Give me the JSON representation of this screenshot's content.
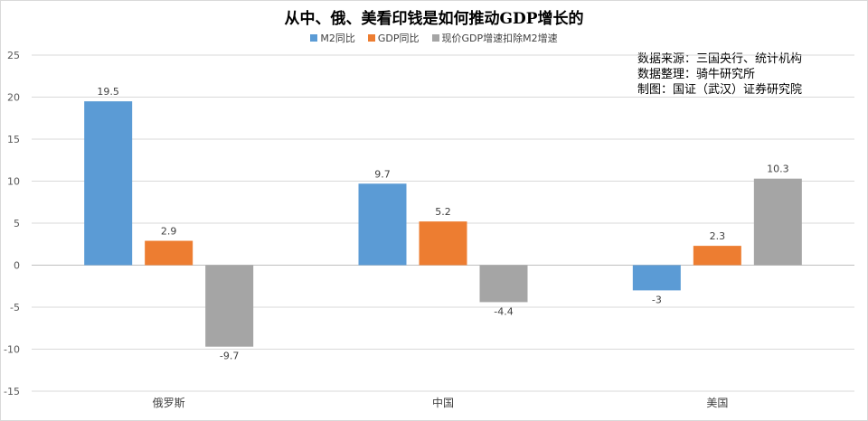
{
  "title": "从中、俄、美看印钱是如何推动GDP增长的",
  "chart_data": {
    "type": "bar",
    "categories": [
      "俄罗斯",
      "中国",
      "美国"
    ],
    "series": [
      {
        "name": "M2同比",
        "color": "#5b9bd5",
        "values": [
          19.5,
          9.7,
          -3
        ]
      },
      {
        "name": "GDP同比",
        "color": "#ed7d31",
        "values": [
          2.9,
          5.2,
          2.3
        ]
      },
      {
        "name": "现价GDP增速扣除M2增速",
        "color": "#a5a5a5",
        "values": [
          -9.7,
          -4.4,
          10.3
        ]
      }
    ],
    "data_labels": [
      [
        "19.5",
        "2.9",
        "-9.7"
      ],
      [
        "9.7",
        "5.2",
        "-4.4"
      ],
      [
        "-3",
        "2.3",
        "10.3"
      ]
    ],
    "ylim": [
      -15,
      25
    ],
    "yticks": [
      25,
      20,
      15,
      10,
      5,
      0,
      -5,
      -10,
      -15
    ],
    "grid": true,
    "legend": "top"
  },
  "notes": {
    "line1": "数据来源：三国央行、统计机构",
    "line2": "数据整理：骑牛研究所",
    "line3": "制图：国证（武汉）证券研究院"
  }
}
